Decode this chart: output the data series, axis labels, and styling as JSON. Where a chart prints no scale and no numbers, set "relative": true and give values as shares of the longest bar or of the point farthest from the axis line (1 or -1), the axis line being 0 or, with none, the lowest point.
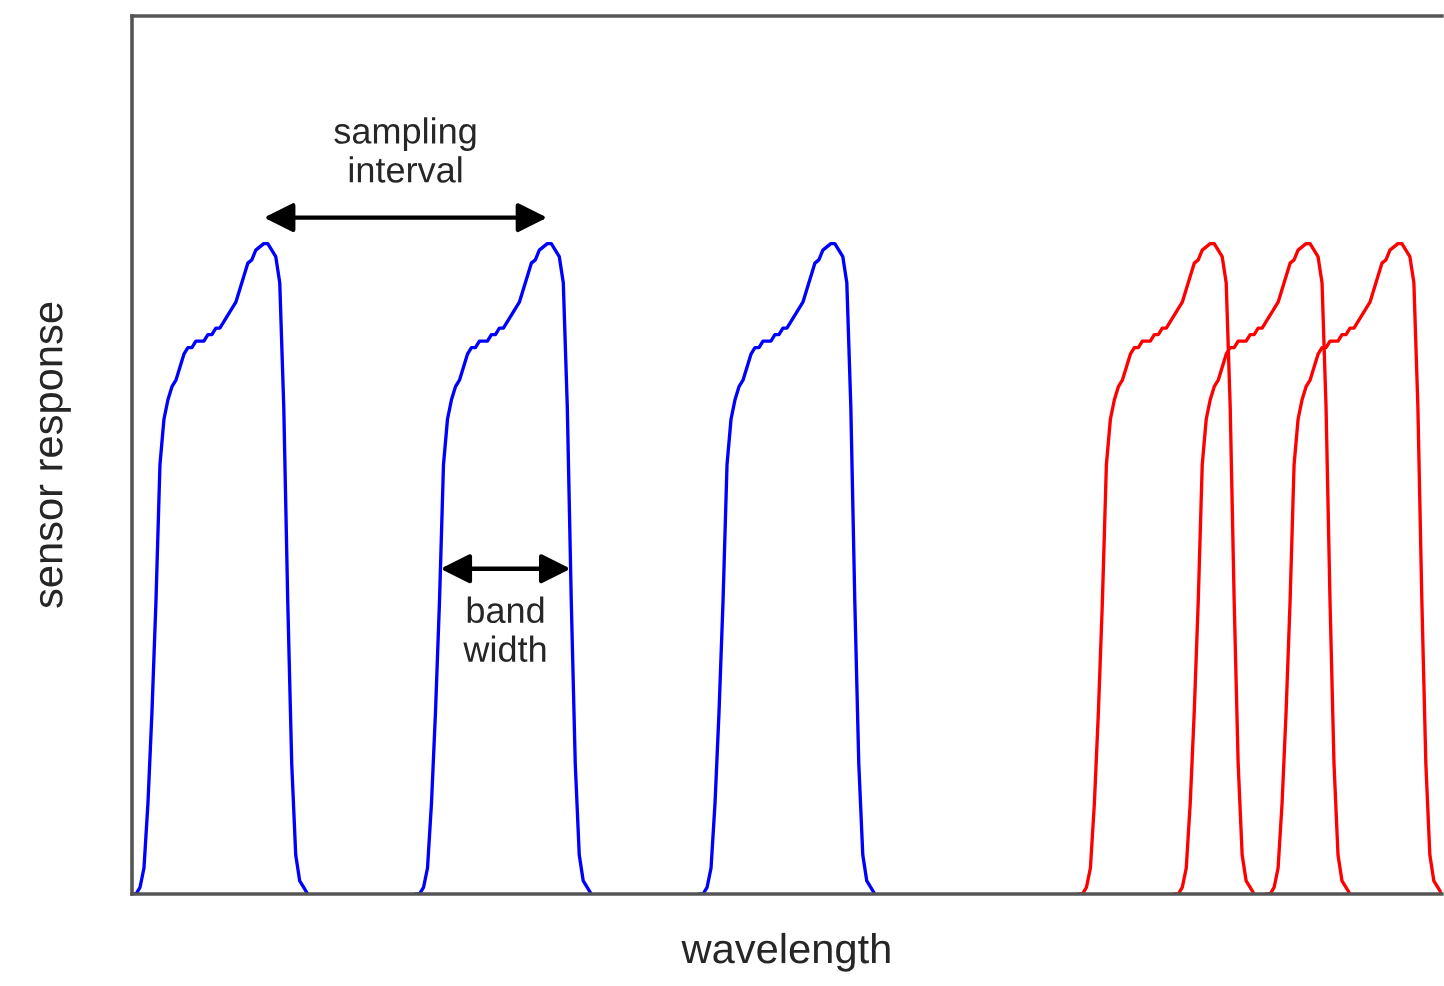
{
  "chart_data": {
    "type": "line",
    "relative": true,
    "xlabel": "wavelength",
    "ylabel": "sensor response",
    "categories": [
      null,
      null,
      null,
      null,
      null,
      null,
      null,
      null,
      null,
      null,
      null,
      null,
      null,
      null,
      null,
      null,
      null,
      null,
      null,
      null,
      null,
      null,
      null,
      null,
      null,
      null,
      null,
      null,
      null,
      null,
      null,
      null,
      null,
      null,
      null,
      null,
      null,
      null,
      null,
      null,
      null,
      null,
      null,
      null,
      null,
      null,
      null,
      null,
      null,
      null,
      null,
      null,
      null,
      null,
      null,
      null,
      null,
      null,
      null,
      null,
      null,
      null,
      null,
      null,
      null,
      null,
      null,
      null,
      null,
      null,
      null,
      null,
      null,
      null,
      null,
      null,
      null,
      null,
      null,
      null,
      null,
      null,
      null,
      null,
      null,
      null,
      null,
      null,
      null,
      null,
      null,
      null,
      null,
      null,
      null,
      null,
      null,
      null,
      null,
      null,
      null,
      null,
      null,
      null,
      null,
      null,
      null,
      null,
      null,
      null,
      null,
      null,
      null,
      null,
      null,
      null,
      null,
      null,
      null,
      null,
      null,
      null,
      null,
      null,
      null,
      null,
      null,
      null,
      null,
      null,
      null,
      null,
      null,
      null,
      null,
      null,
      null,
      null,
      null,
      null,
      null,
      null,
      null,
      null,
      null,
      null,
      null,
      null,
      null,
      null,
      null,
      null,
      null,
      null,
      null,
      null,
      null,
      null,
      null,
      null,
      null,
      null,
      null,
      null,
      null,
      null,
      null,
      null,
      null,
      null,
      null,
      null,
      null,
      null,
      null,
      null,
      null,
      null,
      null,
      null,
      null,
      null,
      null,
      null,
      null,
      null,
      null,
      null,
      null,
      null,
      null,
      null,
      null,
      null,
      null,
      null,
      null,
      null,
      null,
      null,
      null,
      null,
      null,
      null,
      null,
      null,
      null,
      null,
      null,
      null,
      null,
      null,
      null,
      null,
      null,
      null,
      null,
      null,
      null,
      null,
      null,
      null,
      null,
      null,
      null,
      null,
      null,
      null,
      null,
      null,
      null,
      null,
      null,
      null,
      null,
      null,
      null,
      null,
      null,
      null,
      null,
      null,
      null,
      null,
      null,
      null,
      null,
      null,
      null,
      null,
      null,
      null,
      null,
      null,
      null,
      null,
      null,
      null,
      null,
      null,
      null,
      null,
      null,
      null,
      null,
      null,
      null,
      null,
      null,
      null,
      null,
      null,
      null,
      null,
      null,
      null,
      null,
      null,
      null,
      null,
      null,
      null,
      null,
      null,
      null,
      null,
      null,
      null,
      null,
      null,
      null,
      null,
      null,
      null,
      null,
      null,
      null,
      null,
      null,
      null,
      null,
      null,
      null,
      null,
      null,
      null,
      null,
      null,
      null,
      null,
      null,
      null,
      null,
      null,
      null,
      null,
      null,
      null,
      null,
      null,
      null,
      null,
      null,
      null,
      null,
      null,
      null,
      null,
      null
    ],
    "annotations": [
      "sampling\ninterval",
      "band\nwidth"
    ],
    "series": [
      {
        "color": "#0000ff",
        "values": [
          0,
          0,
          0.01,
          0.04,
          0.14,
          0.28,
          0.45,
          0.66,
          0.73,
          0.76,
          0.78,
          0.79,
          0.81,
          0.83,
          0.84,
          0.84,
          0.85,
          0.85,
          0.85,
          0.86,
          0.86,
          0.87,
          0.87,
          0.88,
          0.89,
          0.9,
          0.91,
          0.93,
          0.95,
          0.97,
          0.975,
          0.99,
          0.995,
          1,
          1,
          0.99,
          0.98,
          0.94,
          0.75,
          0.45,
          0.2,
          0.06,
          0.02,
          0.01,
          0,
          null,
          null,
          null,
          null,
          null,
          null,
          null,
          null,
          null,
          null,
          null,
          null,
          null,
          null,
          null,
          null,
          null,
          null,
          null,
          null,
          null,
          null,
          null,
          null,
          null,
          null,
          null,
          null,
          null,
          null,
          null,
          null,
          null,
          null,
          null,
          null,
          null,
          null,
          null,
          null,
          null,
          null,
          null,
          null,
          null,
          null,
          null,
          null,
          null,
          null,
          null,
          null,
          null,
          null,
          null,
          null,
          null,
          null,
          null,
          null,
          null,
          null,
          null,
          null,
          null,
          null,
          null,
          null,
          null,
          null,
          null,
          null,
          null,
          null,
          null,
          null,
          null,
          null,
          null,
          null,
          null,
          null,
          null,
          null,
          null,
          null,
          null,
          null,
          null,
          null,
          null,
          null,
          null,
          null,
          null,
          null,
          null,
          null,
          null,
          null,
          null,
          null,
          null,
          null,
          null,
          null,
          null,
          null,
          null,
          null,
          null,
          null,
          null,
          null,
          null,
          null,
          null,
          null,
          null,
          null,
          null,
          null,
          null,
          null,
          null,
          null,
          null,
          null,
          null,
          null,
          null,
          null,
          null,
          null,
          null,
          null,
          null,
          null,
          null,
          null,
          null,
          null,
          null,
          null,
          null,
          null,
          null,
          null,
          null,
          null,
          null,
          null,
          null,
          null,
          null,
          null,
          null,
          null,
          null,
          null,
          null,
          null,
          null,
          null,
          null,
          null,
          null,
          null,
          null,
          null,
          null,
          null,
          null,
          null,
          null,
          null,
          null,
          null,
          null,
          null,
          null,
          null,
          null,
          null,
          null,
          null,
          null,
          null,
          null,
          null,
          null,
          null,
          null,
          null,
          null,
          null,
          null,
          null,
          null,
          null,
          null,
          null,
          null,
          null,
          null,
          null,
          null,
          null,
          null,
          null,
          null,
          null,
          null,
          null,
          null,
          null,
          null,
          null,
          null,
          null,
          null,
          null,
          null,
          null,
          null,
          null,
          null,
          null,
          null,
          null,
          null,
          null,
          null,
          null,
          null,
          null,
          null,
          null,
          null,
          null,
          null,
          null,
          null,
          null,
          null,
          null,
          null,
          null,
          null,
          null,
          null,
          null,
          null,
          null,
          null,
          null,
          null,
          null,
          null,
          null,
          null,
          null,
          null,
          null,
          null,
          null,
          null,
          null,
          null,
          null,
          null,
          null,
          null,
          null,
          null,
          null,
          null,
          null,
          null,
          null,
          null,
          null,
          null,
          null
        ]
      },
      {
        "color": "#0000ff",
        "values": [
          null,
          null,
          null,
          null,
          null,
          null,
          null,
          null,
          null,
          null,
          null,
          null,
          null,
          null,
          null,
          null,
          null,
          null,
          null,
          null,
          null,
          null,
          null,
          null,
          null,
          null,
          null,
          null,
          null,
          null,
          null,
          null,
          null,
          null,
          null,
          null,
          null,
          null,
          null,
          null,
          null,
          null,
          null,
          null,
          null,
          null,
          null,
          null,
          null,
          null,
          null,
          null,
          null,
          null,
          null,
          null,
          null,
          null,
          null,
          null,
          null,
          null,
          null,
          null,
          null,
          null,
          null,
          null,
          null,
          null,
          null,
          0,
          0,
          0.01,
          0.04,
          0.14,
          0.28,
          0.45,
          0.66,
          0.73,
          0.76,
          0.78,
          0.79,
          0.81,
          0.83,
          0.84,
          0.84,
          0.85,
          0.85,
          0.85,
          0.86,
          0.86,
          0.87,
          0.87,
          0.88,
          0.89,
          0.9,
          0.91,
          0.93,
          0.95,
          0.97,
          0.975,
          0.99,
          0.995,
          1,
          1,
          0.99,
          0.98,
          0.94,
          0.75,
          0.45,
          0.2,
          0.06,
          0.02,
          0.01,
          0,
          null,
          null,
          null,
          null,
          null,
          null,
          null,
          null,
          null,
          null,
          null,
          null,
          null,
          null,
          null,
          null,
          null,
          null,
          null,
          null,
          null,
          null,
          null,
          null,
          null,
          null,
          null,
          null,
          null,
          null,
          null,
          null,
          null,
          null,
          null,
          null,
          null,
          null,
          null,
          null,
          null,
          null,
          null,
          null,
          null,
          null,
          null,
          null,
          null,
          null,
          null,
          null,
          null,
          null,
          null,
          null,
          null,
          null,
          null,
          null,
          null,
          null,
          null,
          null,
          null,
          null,
          null,
          null,
          null,
          null,
          null,
          null,
          null,
          null,
          null,
          null,
          null,
          null,
          null,
          null,
          null,
          null,
          null,
          null,
          null,
          null,
          null,
          null,
          null,
          null,
          null,
          null,
          null,
          null,
          null,
          null,
          null,
          null,
          null,
          null,
          null,
          null,
          null,
          null,
          null,
          null,
          null,
          null,
          null,
          null,
          null,
          null,
          null,
          null,
          null,
          null,
          null,
          null,
          null,
          null,
          null,
          null,
          null,
          null,
          null,
          null,
          null,
          null,
          null,
          null,
          null,
          null,
          null,
          null,
          null,
          null,
          null,
          null,
          null,
          null,
          null,
          null,
          null,
          null,
          null,
          null,
          null,
          null,
          null,
          null,
          null,
          null,
          null,
          null,
          null,
          null,
          null,
          null,
          null,
          null,
          null,
          null,
          null,
          null,
          null,
          null,
          null,
          null,
          null,
          null,
          null,
          null,
          null,
          null,
          null,
          null,
          null,
          null,
          null,
          null,
          null,
          null,
          null,
          null,
          null,
          null,
          null,
          null,
          null,
          null,
          null,
          null,
          null,
          null,
          null,
          null,
          null,
          null,
          null,
          null,
          null,
          null,
          null,
          null,
          null,
          null,
          null,
          null,
          null,
          null,
          null,
          null,
          null
        ]
      },
      {
        "color": "#0000ff",
        "values": [
          null,
          null,
          null,
          null,
          null,
          null,
          null,
          null,
          null,
          null,
          null,
          null,
          null,
          null,
          null,
          null,
          null,
          null,
          null,
          null,
          null,
          null,
          null,
          null,
          null,
          null,
          null,
          null,
          null,
          null,
          null,
          null,
          null,
          null,
          null,
          null,
          null,
          null,
          null,
          null,
          null,
          null,
          null,
          null,
          null,
          null,
          null,
          null,
          null,
          null,
          null,
          null,
          null,
          null,
          null,
          null,
          null,
          null,
          null,
          null,
          null,
          null,
          null,
          null,
          null,
          null,
          null,
          null,
          null,
          null,
          null,
          null,
          null,
          null,
          null,
          null,
          null,
          null,
          null,
          null,
          null,
          null,
          null,
          null,
          null,
          null,
          null,
          null,
          null,
          null,
          null,
          null,
          null,
          null,
          null,
          null,
          null,
          null,
          null,
          null,
          null,
          null,
          null,
          null,
          null,
          null,
          null,
          null,
          null,
          null,
          null,
          null,
          null,
          null,
          null,
          null,
          null,
          null,
          null,
          null,
          null,
          null,
          null,
          null,
          null,
          null,
          null,
          null,
          null,
          null,
          null,
          null,
          null,
          null,
          null,
          null,
          null,
          null,
          null,
          null,
          null,
          null,
          0,
          0,
          0.01,
          0.04,
          0.14,
          0.28,
          0.45,
          0.66,
          0.73,
          0.76,
          0.78,
          0.79,
          0.81,
          0.83,
          0.84,
          0.84,
          0.85,
          0.85,
          0.85,
          0.86,
          0.86,
          0.87,
          0.87,
          0.88,
          0.89,
          0.9,
          0.91,
          0.93,
          0.95,
          0.97,
          0.975,
          0.99,
          0.995,
          1,
          1,
          0.99,
          0.98,
          0.94,
          0.75,
          0.45,
          0.2,
          0.06,
          0.02,
          0.01,
          0,
          null,
          null,
          null,
          null,
          null,
          null,
          null,
          null,
          null,
          null,
          null,
          null,
          null,
          null,
          null,
          null,
          null,
          null,
          null,
          null,
          null,
          null,
          null,
          null,
          null,
          null,
          null,
          null,
          null,
          null,
          null,
          null,
          null,
          null,
          null,
          null,
          null,
          null,
          null,
          null,
          null,
          null,
          null,
          null,
          null,
          null,
          null,
          null,
          null,
          null,
          null,
          null,
          null,
          null,
          null,
          null,
          null,
          null,
          null,
          null,
          null,
          null,
          null,
          null,
          null,
          null,
          null,
          null,
          null,
          null,
          null,
          null,
          null,
          null,
          null,
          null,
          null,
          null,
          null,
          null,
          null,
          null,
          null,
          null,
          null,
          null,
          null,
          null,
          null,
          null,
          null,
          null,
          null,
          null,
          null,
          null,
          null,
          null,
          null,
          null,
          null,
          null,
          null,
          null,
          null,
          null,
          null,
          null,
          null,
          null,
          null,
          null,
          null,
          null,
          null,
          null,
          null,
          null,
          null,
          null,
          null,
          null,
          null,
          null,
          null,
          null,
          null,
          null,
          null,
          null,
          null,
          null,
          null,
          null,
          null,
          null,
          null,
          null,
          null,
          null,
          null,
          null
        ]
      },
      {
        "color": "#ff0000",
        "values": [
          null,
          null,
          null,
          null,
          null,
          null,
          null,
          null,
          null,
          null,
          null,
          null,
          null,
          null,
          null,
          null,
          null,
          null,
          null,
          null,
          null,
          null,
          null,
          null,
          null,
          null,
          null,
          null,
          null,
          null,
          null,
          null,
          null,
          null,
          null,
          null,
          null,
          null,
          null,
          null,
          null,
          null,
          null,
          null,
          null,
          null,
          null,
          null,
          null,
          null,
          null,
          null,
          null,
          null,
          null,
          null,
          null,
          null,
          null,
          null,
          null,
          null,
          null,
          null,
          null,
          null,
          null,
          null,
          null,
          null,
          null,
          null,
          null,
          null,
          null,
          null,
          null,
          null,
          null,
          null,
          null,
          null,
          null,
          null,
          null,
          null,
          null,
          null,
          null,
          null,
          null,
          null,
          null,
          null,
          null,
          null,
          null,
          null,
          null,
          null,
          null,
          null,
          null,
          null,
          null,
          null,
          null,
          null,
          null,
          null,
          null,
          null,
          null,
          null,
          null,
          null,
          null,
          null,
          null,
          null,
          null,
          null,
          null,
          null,
          null,
          null,
          null,
          null,
          null,
          null,
          null,
          null,
          null,
          null,
          null,
          null,
          null,
          null,
          null,
          null,
          null,
          null,
          null,
          null,
          null,
          null,
          null,
          null,
          null,
          null,
          null,
          null,
          null,
          null,
          null,
          null,
          null,
          null,
          null,
          null,
          null,
          null,
          null,
          null,
          null,
          null,
          null,
          null,
          null,
          null,
          null,
          null,
          null,
          null,
          null,
          null,
          null,
          null,
          null,
          null,
          null,
          null,
          null,
          null,
          null,
          null,
          null,
          null,
          null,
          null,
          null,
          null,
          null,
          null,
          null,
          null,
          null,
          null,
          null,
          null,
          null,
          null,
          null,
          null,
          null,
          null,
          null,
          null,
          null,
          null,
          null,
          null,
          null,
          null,
          null,
          null,
          null,
          null,
          null,
          null,
          null,
          null,
          null,
          null,
          null,
          null,
          null,
          null,
          null,
          null,
          null,
          null,
          null,
          null,
          null,
          null,
          null,
          0,
          0,
          0.01,
          0.04,
          0.14,
          0.28,
          0.45,
          0.66,
          0.73,
          0.76,
          0.78,
          0.79,
          0.81,
          0.83,
          0.84,
          0.84,
          0.85,
          0.85,
          0.85,
          0.86,
          0.86,
          0.87,
          0.87,
          0.88,
          0.89,
          0.9,
          0.91,
          0.93,
          0.95,
          0.97,
          0.975,
          0.99,
          0.995,
          1,
          1,
          0.99,
          0.98,
          0.94,
          0.75,
          0.45,
          0.2,
          0.06,
          0.02,
          0.01,
          0,
          null,
          null,
          null,
          null,
          null,
          null,
          null,
          null,
          null,
          null,
          null,
          null,
          null,
          null,
          null,
          null,
          null,
          null,
          null,
          null,
          null,
          null,
          null,
          null,
          null,
          null,
          null,
          null,
          null,
          null,
          null,
          null,
          null,
          null,
          null,
          null,
          null,
          null,
          null,
          null,
          null,
          null,
          null,
          null,
          null,
          null,
          null
        ]
      },
      {
        "color": "#ff0000",
        "values": [
          null,
          null,
          null,
          null,
          null,
          null,
          null,
          null,
          null,
          null,
          null,
          null,
          null,
          null,
          null,
          null,
          null,
          null,
          null,
          null,
          null,
          null,
          null,
          null,
          null,
          null,
          null,
          null,
          null,
          null,
          null,
          null,
          null,
          null,
          null,
          null,
          null,
          null,
          null,
          null,
          null,
          null,
          null,
          null,
          null,
          null,
          null,
          null,
          null,
          null,
          null,
          null,
          null,
          null,
          null,
          null,
          null,
          null,
          null,
          null,
          null,
          null,
          null,
          null,
          null,
          null,
          null,
          null,
          null,
          null,
          null,
          null,
          null,
          null,
          null,
          null,
          null,
          null,
          null,
          null,
          null,
          null,
          null,
          null,
          null,
          null,
          null,
          null,
          null,
          null,
          null,
          null,
          null,
          null,
          null,
          null,
          null,
          null,
          null,
          null,
          null,
          null,
          null,
          null,
          null,
          null,
          null,
          null,
          null,
          null,
          null,
          null,
          null,
          null,
          null,
          null,
          null,
          null,
          null,
          null,
          null,
          null,
          null,
          null,
          null,
          null,
          null,
          null,
          null,
          null,
          null,
          null,
          null,
          null,
          null,
          null,
          null,
          null,
          null,
          null,
          null,
          null,
          null,
          null,
          null,
          null,
          null,
          null,
          null,
          null,
          null,
          null,
          null,
          null,
          null,
          null,
          null,
          null,
          null,
          null,
          null,
          null,
          null,
          null,
          null,
          null,
          null,
          null,
          null,
          null,
          null,
          null,
          null,
          null,
          null,
          null,
          null,
          null,
          null,
          null,
          null,
          null,
          null,
          null,
          null,
          null,
          null,
          null,
          null,
          null,
          null,
          null,
          null,
          null,
          null,
          null,
          null,
          null,
          null,
          null,
          null,
          null,
          null,
          null,
          null,
          null,
          null,
          null,
          null,
          null,
          null,
          null,
          null,
          null,
          null,
          null,
          null,
          null,
          null,
          null,
          null,
          null,
          null,
          null,
          null,
          null,
          null,
          null,
          null,
          null,
          null,
          null,
          null,
          null,
          null,
          null,
          null,
          null,
          null,
          null,
          null,
          null,
          null,
          null,
          null,
          null,
          null,
          null,
          null,
          null,
          null,
          null,
          null,
          null,
          null,
          null,
          null,
          null,
          null,
          null,
          null,
          0,
          0,
          0.01,
          0.04,
          0.14,
          0.28,
          0.45,
          0.66,
          0.73,
          0.76,
          0.78,
          0.79,
          0.81,
          0.83,
          0.84,
          0.84,
          0.85,
          0.85,
          0.85,
          0.86,
          0.86,
          0.87,
          0.87,
          0.88,
          0.89,
          0.9,
          0.91,
          0.93,
          0.95,
          0.97,
          0.975,
          0.99,
          0.995,
          1,
          1,
          0.99,
          0.98,
          0.94,
          0.75,
          0.45,
          0.2,
          0.06,
          0.02,
          0.01,
          0,
          null,
          null,
          null,
          null,
          null,
          null,
          null,
          null,
          null,
          null,
          null,
          null,
          null,
          null,
          null,
          null,
          null,
          null,
          null,
          null,
          null,
          null,
          null
        ]
      },
      {
        "color": "#ff0000",
        "values": [
          null,
          null,
          null,
          null,
          null,
          null,
          null,
          null,
          null,
          null,
          null,
          null,
          null,
          null,
          null,
          null,
          null,
          null,
          null,
          null,
          null,
          null,
          null,
          null,
          null,
          null,
          null,
          null,
          null,
          null,
          null,
          null,
          null,
          null,
          null,
          null,
          null,
          null,
          null,
          null,
          null,
          null,
          null,
          null,
          null,
          null,
          null,
          null,
          null,
          null,
          null,
          null,
          null,
          null,
          null,
          null,
          null,
          null,
          null,
          null,
          null,
          null,
          null,
          null,
          null,
          null,
          null,
          null,
          null,
          null,
          null,
          null,
          null,
          null,
          null,
          null,
          null,
          null,
          null,
          null,
          null,
          null,
          null,
          null,
          null,
          null,
          null,
          null,
          null,
          null,
          null,
          null,
          null,
          null,
          null,
          null,
          null,
          null,
          null,
          null,
          null,
          null,
          null,
          null,
          null,
          null,
          null,
          null,
          null,
          null,
          null,
          null,
          null,
          null,
          null,
          null,
          null,
          null,
          null,
          null,
          null,
          null,
          null,
          null,
          null,
          null,
          null,
          null,
          null,
          null,
          null,
          null,
          null,
          null,
          null,
          null,
          null,
          null,
          null,
          null,
          null,
          null,
          null,
          null,
          null,
          null,
          null,
          null,
          null,
          null,
          null,
          null,
          null,
          null,
          null,
          null,
          null,
          null,
          null,
          null,
          null,
          null,
          null,
          null,
          null,
          null,
          null,
          null,
          null,
          null,
          null,
          null,
          null,
          null,
          null,
          null,
          null,
          null,
          null,
          null,
          null,
          null,
          null,
          null,
          null,
          null,
          null,
          null,
          null,
          null,
          null,
          null,
          null,
          null,
          null,
          null,
          null,
          null,
          null,
          null,
          null,
          null,
          null,
          null,
          null,
          null,
          null,
          null,
          null,
          null,
          null,
          null,
          null,
          null,
          null,
          null,
          null,
          null,
          null,
          null,
          null,
          null,
          null,
          null,
          null,
          null,
          null,
          null,
          null,
          null,
          null,
          null,
          null,
          null,
          null,
          null,
          null,
          null,
          null,
          null,
          null,
          null,
          null,
          null,
          null,
          null,
          null,
          null,
          null,
          null,
          null,
          null,
          null,
          null,
          null,
          null,
          null,
          null,
          null,
          null,
          null,
          null,
          null,
          null,
          null,
          null,
          null,
          null,
          null,
          null,
          null,
          null,
          null,
          null,
          null,
          null,
          null,
          null,
          null,
          null,
          null,
          null,
          null,
          null,
          0,
          0,
          0.01,
          0.04,
          0.14,
          0.28,
          0.45,
          0.66,
          0.73,
          0.76,
          0.78,
          0.79,
          0.81,
          0.83,
          0.84,
          0.84,
          0.85,
          0.85,
          0.85,
          0.86,
          0.86,
          0.87,
          0.87,
          0.88,
          0.89,
          0.9,
          0.91,
          0.93,
          0.95,
          0.97,
          0.975,
          0.99,
          0.995,
          1,
          1,
          0.99,
          0.98,
          0.94,
          0.75,
          0.45,
          0.2,
          0.06,
          0.02,
          0.01,
          0
        ]
      }
    ]
  }
}
